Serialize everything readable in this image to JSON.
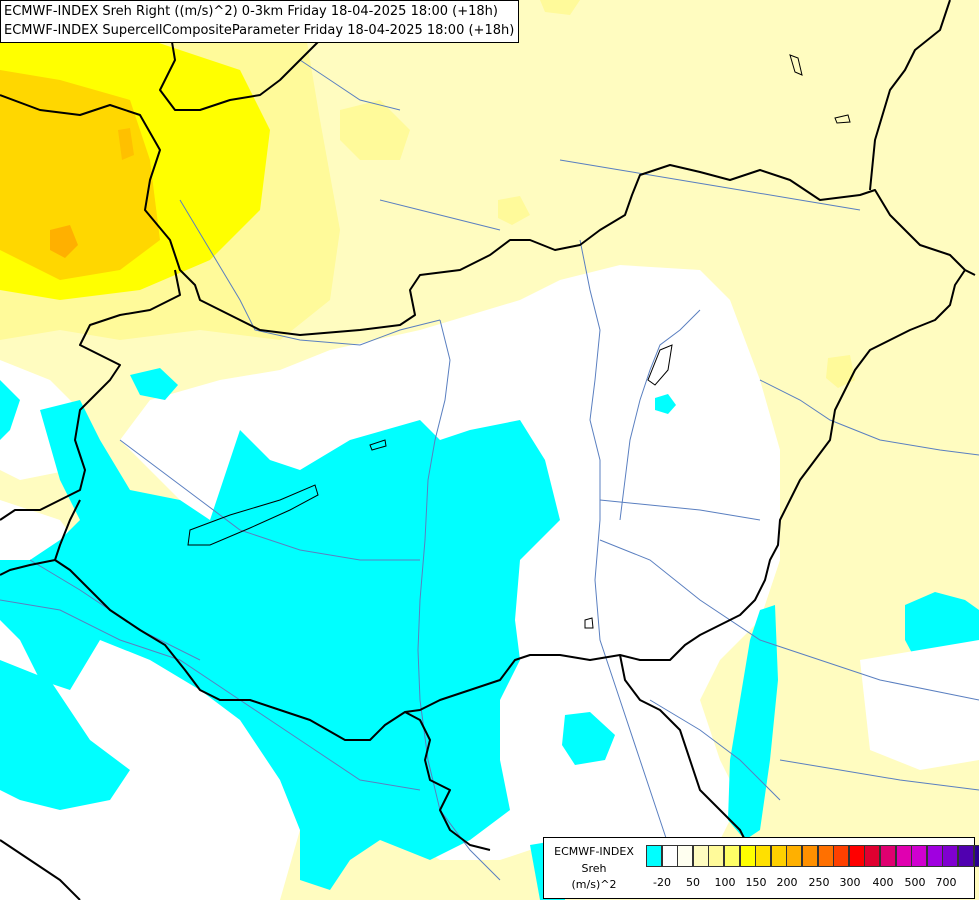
{
  "title": {
    "line1": "ECMWF-INDEX Sreh Right ((m/s)^2) 0-3km Friday 18-04-2025 18:00 (+18h)",
    "line2": "ECMWF-INDEX SupercellCompositeParameter Friday 18-04-2025 18:00 (+18h)"
  },
  "colors": {
    "cyan": "#00ffff",
    "pale_yellow": "#fffcc0",
    "light_yellow": "#fffa9a",
    "yellow": "#ffff00",
    "gold": "#ffd700",
    "orange": "#ffb000",
    "border": "#000000",
    "river": "#5a7fc0"
  },
  "legend": {
    "source": "ECMWF-INDEX",
    "name": "Sreh",
    "unit": "(m/s)^2",
    "swatches": [
      "#00ffff",
      "#ffffff",
      "#fffff0",
      "#fffcc0",
      "#fffa9a",
      "#ffff66",
      "#ffff00",
      "#ffe000",
      "#ffd000",
      "#ffb000",
      "#ff9000",
      "#ff7000",
      "#ff4000",
      "#ff0000",
      "#e00030",
      "#e00070",
      "#e000b0",
      "#d000d0",
      "#a000e0",
      "#8000d0",
      "#5000b0",
      "#2a0090",
      "#000070"
    ],
    "ticks": [
      "-20",
      "50",
      "100",
      "150",
      "200",
      "250",
      "300",
      "400",
      "500",
      "700"
    ]
  }
}
